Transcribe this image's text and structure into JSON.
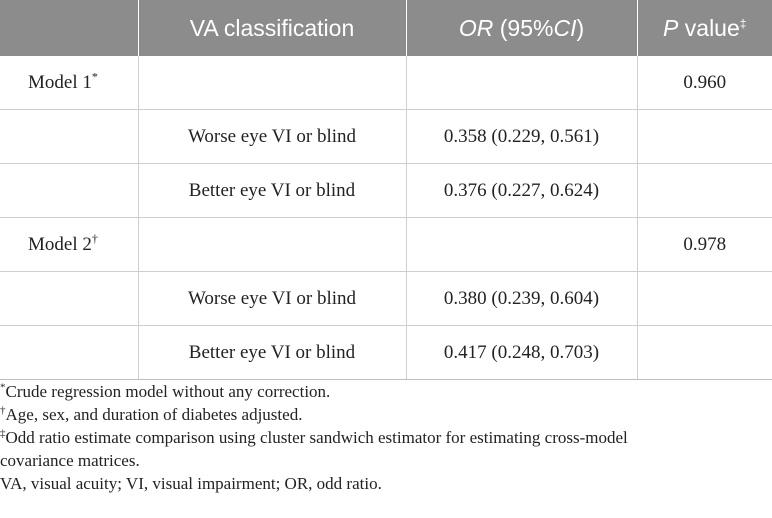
{
  "table": {
    "header": {
      "col1": "",
      "col2": "VA classification",
      "col3_italic": "OR",
      "col3_rest": " (95%",
      "col3_italic2": "CI",
      "col3_end": ")",
      "col4_italic": "P",
      "col4_rest": " value",
      "col4_mark": "‡"
    },
    "rows": [
      {
        "model": "Model 1",
        "mark": "*",
        "classification": "",
        "or": "",
        "p": "0.960"
      },
      {
        "model": "",
        "mark": "",
        "classification": "Worse eye VI or blind",
        "or": "0.358 (0.229, 0.561)",
        "p": ""
      },
      {
        "model": "",
        "mark": "",
        "classification": "Better eye VI or blind",
        "or": "0.376 (0.227, 0.624)",
        "p": ""
      },
      {
        "model": "Model 2",
        "mark": "†",
        "classification": "",
        "or": "",
        "p": "0.978"
      },
      {
        "model": "",
        "mark": "",
        "classification": "Worse eye VI or blind",
        "or": "0.380 (0.239, 0.604)",
        "p": ""
      },
      {
        "model": "",
        "mark": "",
        "classification": "Better eye VI or blind",
        "or": "0.417 (0.248, 0.703)",
        "p": ""
      }
    ]
  },
  "footnotes": {
    "note1_mark": "*",
    "note1_text": "Crude regression model without any correction.",
    "note2_mark": "†",
    "note2_text": "Age, sex, and duration of diabetes adjusted.",
    "note3_mark": "‡",
    "note3_text_line1": "Odd ratio estimate comparison using cluster sandwich estimator for estimating cross-model",
    "note3_text_line2": "covariance matrices.",
    "abbreviations": "VA, visual acuity; VI, visual impairment; OR, odd ratio."
  },
  "colors": {
    "header_bg": "#8c8c8c",
    "header_text": "#ffffff",
    "grid": "#cfcfcf",
    "text": "#222222"
  }
}
